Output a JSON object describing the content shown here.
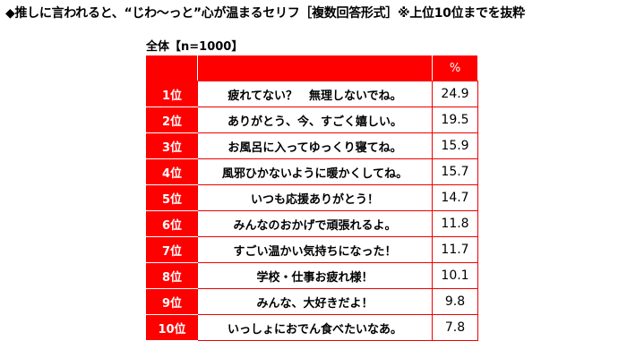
{
  "title": "◆推しに言われると、“じわ〜っと”心が温まるセリフ［複数回答形式］※上位10位までを抜粋",
  "subtitle": "全体【n=1000】",
  "header": {
    "rank": "",
    "text": "",
    "value": "%"
  },
  "rows": [
    {
      "rank": "1位",
      "text": "疲れてない？　無理しないでね。",
      "value": "24.9"
    },
    {
      "rank": "2位",
      "text": "ありがとう、今、すごく嬉しい。",
      "value": "19.5"
    },
    {
      "rank": "3位",
      "text": "お風呂に入ってゆっくり寝てね。",
      "value": "15.9"
    },
    {
      "rank": "4位",
      "text": "風邪ひかないように暖かくしてね。",
      "value": "15.7"
    },
    {
      "rank": "5位",
      "text": "いつも応援ありがとう！",
      "value": "14.7"
    },
    {
      "rank": "6位",
      "text": "みんなのおかげで頑張れるよ。",
      "value": "11.8"
    },
    {
      "rank": "7位",
      "text": "すごい温かい気持ちになった！",
      "value": "11.7"
    },
    {
      "rank": "8位",
      "text": "学校・仕事お疲れ様！",
      "value": "10.1"
    },
    {
      "rank": "9位",
      "text": "みんな、大好きだよ！",
      "value": "9.8"
    },
    {
      "rank": "10位",
      "text": "いっしょにおでん食べたいなあ。",
      "value": "7.8"
    }
  ],
  "colors": {
    "accent": "#ff0000"
  }
}
